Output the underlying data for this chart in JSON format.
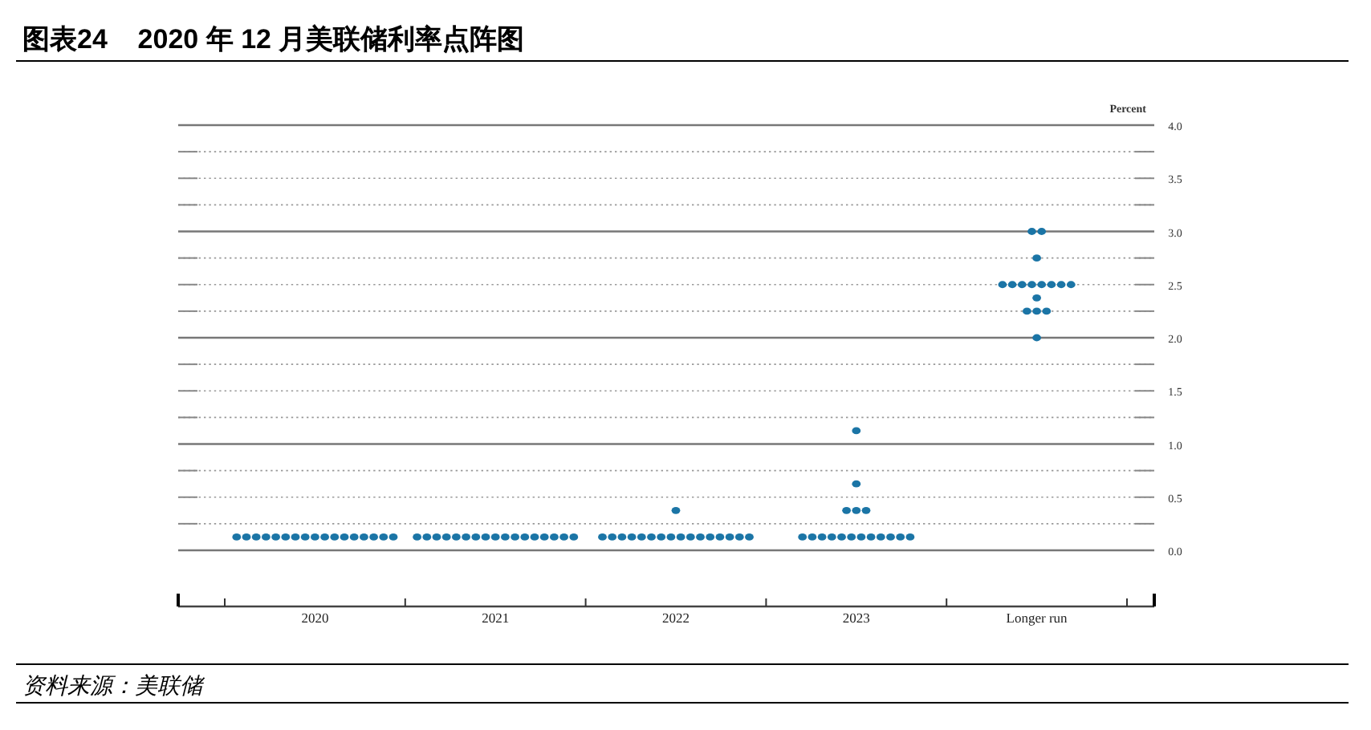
{
  "chart_data": {
    "type": "scatter",
    "title": "图表24    2020 年 12 月美联储利率点阵图",
    "ylabel": "Percent",
    "annotations": [
      "资料来源：美联储"
    ],
    "categories": [
      "2020",
      "2021",
      "2022",
      "2023",
      "Longer run"
    ],
    "ylim": [
      0,
      4
    ],
    "yticks": [
      {
        "value": 0,
        "label": "0.0"
      },
      {
        "value": 0.25,
        "label": null
      },
      {
        "value": 0.5,
        "label": "0.5"
      },
      {
        "value": 0.75,
        "label": null
      },
      {
        "value": 1,
        "label": "1.0"
      },
      {
        "value": 1.25,
        "label": null
      },
      {
        "value": 1.5,
        "label": "1.5"
      },
      {
        "value": 1.75,
        "label": null
      },
      {
        "value": 2,
        "label": "2.0"
      },
      {
        "value": 2.25,
        "label": null
      },
      {
        "value": 2.5,
        "label": "2.5"
      },
      {
        "value": 2.75,
        "label": null
      },
      {
        "value": 3,
        "label": "3.0"
      },
      {
        "value": 3.25,
        "label": null
      },
      {
        "value": 3.5,
        "label": "3.5"
      },
      {
        "value": 3.75,
        "label": null
      },
      {
        "value": 4,
        "label": "4.0"
      }
    ],
    "grid": "y",
    "marker": "circle",
    "series": [
      {
        "color": "#1b75a6",
        "values": [
          0.125,
          0.125,
          0.125,
          0.125,
          3.0
        ]
      },
      {
        "color": "#1b75a6",
        "values": [
          0.125,
          0.125,
          0.125,
          0.125,
          3.0
        ]
      },
      {
        "color": "#1b75a6",
        "values": [
          0.125,
          0.125,
          0.125,
          0.125,
          2.75
        ]
      },
      {
        "color": "#1b75a6",
        "values": [
          0.125,
          0.125,
          0.125,
          0.125,
          2.5
        ]
      },
      {
        "color": "#1b75a6",
        "values": [
          0.125,
          0.125,
          0.125,
          0.125,
          2.5
        ]
      },
      {
        "color": "#1b75a6",
        "values": [
          0.125,
          0.125,
          0.125,
          0.125,
          2.5
        ]
      },
      {
        "color": "#1b75a6",
        "values": [
          0.125,
          0.125,
          0.125,
          0.125,
          2.5
        ]
      },
      {
        "color": "#1b75a6",
        "values": [
          0.125,
          0.125,
          0.125,
          0.125,
          2.5
        ]
      },
      {
        "color": "#1b75a6",
        "values": [
          0.125,
          0.125,
          0.125,
          0.125,
          2.5
        ]
      },
      {
        "color": "#1b75a6",
        "values": [
          0.125,
          0.125,
          0.125,
          0.125,
          2.5
        ]
      },
      {
        "color": "#1b75a6",
        "values": [
          0.125,
          0.125,
          0.125,
          0.125,
          2.5
        ]
      },
      {
        "color": "#1b75a6",
        "values": [
          0.125,
          0.125,
          0.125,
          0.125,
          2.375
        ]
      },
      {
        "color": "#1b75a6",
        "values": [
          0.125,
          0.125,
          0.125,
          0.375,
          2.25
        ]
      },
      {
        "color": "#1b75a6",
        "values": [
          0.125,
          0.125,
          0.125,
          0.375,
          2.25
        ]
      },
      {
        "color": "#1b75a6",
        "values": [
          0.125,
          0.125,
          0.125,
          0.375,
          2.25
        ]
      },
      {
        "color": "#1b75a6",
        "values": [
          0.125,
          0.125,
          0.125,
          0.625,
          2.0
        ]
      },
      {
        "color": "#1b75a6",
        "values": [
          0.125,
          0.125,
          0.375,
          1.125,
          null
        ]
      }
    ]
  }
}
